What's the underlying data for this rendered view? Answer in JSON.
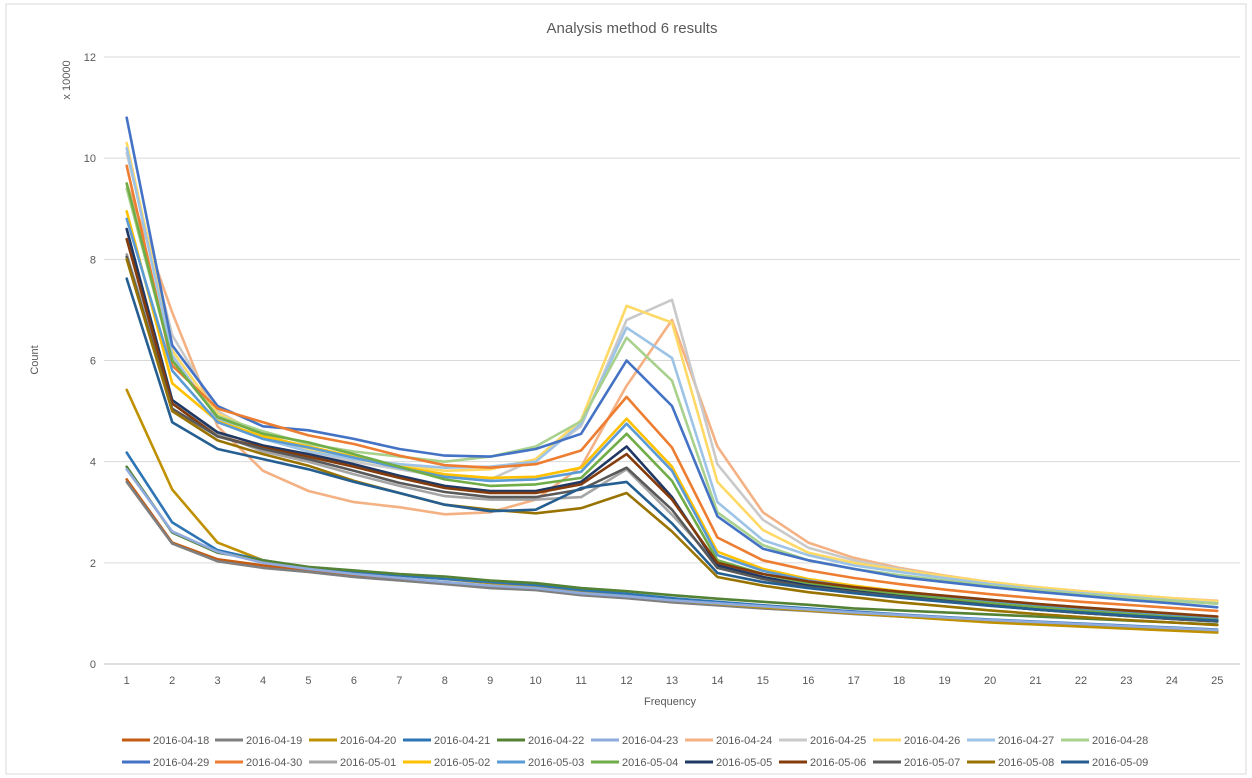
{
  "chart_data": {
    "type": "line",
    "title": "Analysis method 6 results",
    "xlabel": "Frequency",
    "ylabel": "Count",
    "y_unit_label": "x 10000",
    "y_scale": 10000,
    "ylim": [
      0,
      12
    ],
    "y_ticks": [
      0,
      2,
      4,
      6,
      8,
      10,
      12
    ],
    "x": [
      1,
      2,
      3,
      4,
      5,
      6,
      7,
      8,
      9,
      10,
      11,
      12,
      13,
      14,
      15,
      16,
      17,
      18,
      19,
      20,
      21,
      22,
      23,
      24,
      25
    ],
    "grid": "horizontal",
    "legend_position": "bottom",
    "series": [
      {
        "name": "2016-04-18",
        "color": "#c55a11",
        "values": [
          3.65,
          2.4,
          2.07,
          1.95,
          1.85,
          1.75,
          1.68,
          1.6,
          1.52,
          1.48,
          1.38,
          1.32,
          1.24,
          1.18,
          1.12,
          1.06,
          1.0,
          0.95,
          0.9,
          0.84,
          0.8,
          0.76,
          0.72,
          0.68,
          0.64
        ]
      },
      {
        "name": "2016-04-19",
        "color": "#7f7f7f",
        "values": [
          3.6,
          2.38,
          2.03,
          1.9,
          1.82,
          1.72,
          1.65,
          1.58,
          1.5,
          1.46,
          1.36,
          1.3,
          1.22,
          1.16,
          1.1,
          1.05,
          0.99,
          0.94,
          0.89,
          0.83,
          0.79,
          0.75,
          0.71,
          0.67,
          0.63
        ]
      },
      {
        "name": "2016-04-20",
        "color": "#bf9000",
        "values": [
          5.42,
          3.45,
          2.4,
          2.05,
          1.9,
          1.82,
          1.75,
          1.68,
          1.6,
          1.52,
          1.42,
          1.35,
          1.26,
          1.19,
          1.12,
          1.06,
          1.0,
          0.94,
          0.88,
          0.82,
          0.78,
          0.74,
          0.7,
          0.66,
          0.62
        ]
      },
      {
        "name": "2016-04-21",
        "color": "#2e75b6",
        "values": [
          4.18,
          2.8,
          2.25,
          2.05,
          1.9,
          1.82,
          1.75,
          1.68,
          1.62,
          1.56,
          1.46,
          1.39,
          1.3,
          1.23,
          1.16,
          1.1,
          1.04,
          0.98,
          0.93,
          0.88,
          0.84,
          0.8,
          0.76,
          0.72,
          0.68
        ]
      },
      {
        "name": "2016-04-22",
        "color": "#548235",
        "values": [
          3.9,
          2.6,
          2.2,
          2.05,
          1.92,
          1.85,
          1.78,
          1.73,
          1.65,
          1.6,
          1.5,
          1.44,
          1.36,
          1.29,
          1.23,
          1.17,
          1.1,
          1.06,
          1.02,
          0.98,
          0.94,
          0.9,
          0.86,
          0.82,
          0.78
        ]
      },
      {
        "name": "2016-04-23",
        "color": "#8faadc",
        "values": [
          3.85,
          2.62,
          2.22,
          2.0,
          1.88,
          1.78,
          1.7,
          1.62,
          1.55,
          1.5,
          1.4,
          1.34,
          1.26,
          1.2,
          1.14,
          1.08,
          1.02,
          0.97,
          0.92,
          0.87,
          0.83,
          0.79,
          0.75,
          0.71,
          0.67
        ]
      },
      {
        "name": "2016-04-24",
        "color": "#f4b183",
        "values": [
          9.5,
          6.95,
          4.7,
          3.82,
          3.42,
          3.2,
          3.1,
          2.96,
          3.0,
          3.25,
          3.9,
          5.5,
          6.8,
          4.3,
          3.0,
          2.4,
          2.1,
          1.9,
          1.75,
          1.62,
          1.52,
          1.44,
          1.37,
          1.3,
          1.25
        ]
      },
      {
        "name": "2016-04-25",
        "color": "#c9c9c9",
        "values": [
          10.1,
          6.5,
          5.0,
          4.5,
          4.2,
          4.0,
          3.85,
          3.7,
          3.65,
          4.05,
          4.7,
          6.8,
          7.2,
          3.95,
          2.85,
          2.3,
          2.05,
          1.88,
          1.73,
          1.6,
          1.5,
          1.42,
          1.35,
          1.28,
          1.22
        ]
      },
      {
        "name": "2016-04-26",
        "color": "#ffd966",
        "values": [
          10.3,
          6.2,
          4.95,
          4.55,
          4.25,
          4.05,
          3.92,
          3.82,
          3.85,
          4.05,
          4.82,
          7.08,
          6.75,
          3.6,
          2.65,
          2.2,
          2.0,
          1.86,
          1.74,
          1.62,
          1.52,
          1.44,
          1.37,
          1.3,
          1.24
        ]
      },
      {
        "name": "2016-04-27",
        "color": "#9dc3e6",
        "values": [
          10.2,
          6.1,
          4.85,
          4.45,
          4.2,
          4.05,
          3.95,
          3.88,
          3.9,
          4.0,
          4.75,
          6.65,
          6.05,
          3.2,
          2.45,
          2.15,
          1.95,
          1.82,
          1.7,
          1.58,
          1.48,
          1.4,
          1.33,
          1.26,
          1.2
        ]
      },
      {
        "name": "2016-04-28",
        "color": "#a9d18e",
        "values": [
          9.4,
          6.0,
          4.9,
          4.6,
          4.35,
          4.2,
          4.1,
          4.0,
          4.1,
          4.3,
          4.8,
          6.45,
          5.6,
          3.0,
          2.35,
          2.05,
          1.88,
          1.76,
          1.65,
          1.55,
          1.46,
          1.38,
          1.31,
          1.25,
          1.19
        ]
      },
      {
        "name": "2016-04-29",
        "color": "#4472c4",
        "values": [
          10.8,
          6.3,
          5.1,
          4.7,
          4.62,
          4.45,
          4.25,
          4.12,
          4.1,
          4.25,
          4.55,
          6.0,
          5.1,
          2.92,
          2.28,
          2.05,
          1.88,
          1.72,
          1.62,
          1.52,
          1.43,
          1.35,
          1.27,
          1.2,
          1.12
        ]
      },
      {
        "name": "2016-04-30",
        "color": "#ed7d31",
        "values": [
          9.85,
          5.9,
          5.05,
          4.78,
          4.52,
          4.35,
          4.12,
          3.93,
          3.88,
          3.95,
          4.22,
          5.28,
          4.28,
          2.5,
          2.05,
          1.85,
          1.7,
          1.58,
          1.47,
          1.38,
          1.3,
          1.23,
          1.17,
          1.11,
          1.05
        ]
      },
      {
        "name": "2016-05-01",
        "color": "#a5a5a5",
        "values": [
          8.1,
          5.2,
          4.55,
          4.2,
          4.0,
          3.75,
          3.52,
          3.32,
          3.25,
          3.25,
          3.3,
          3.85,
          2.95,
          1.98,
          1.72,
          1.55,
          1.44,
          1.34,
          1.25,
          1.16,
          1.08,
          1.02,
          0.96,
          0.9,
          0.85
        ]
      },
      {
        "name": "2016-05-02",
        "color": "#ffc000",
        "values": [
          8.95,
          5.55,
          4.8,
          4.5,
          4.3,
          4.1,
          3.9,
          3.75,
          3.68,
          3.7,
          3.88,
          4.85,
          3.9,
          2.22,
          1.88,
          1.68,
          1.55,
          1.44,
          1.34,
          1.25,
          1.17,
          1.1,
          1.03,
          0.97,
          0.91
        ]
      },
      {
        "name": "2016-05-03",
        "color": "#5b9bd5",
        "values": [
          8.8,
          5.8,
          4.78,
          4.45,
          4.28,
          4.08,
          3.88,
          3.7,
          3.62,
          3.65,
          3.8,
          4.75,
          3.82,
          2.15,
          1.84,
          1.65,
          1.52,
          1.41,
          1.31,
          1.22,
          1.14,
          1.07,
          1.01,
          0.95,
          0.89
        ]
      },
      {
        "name": "2016-05-04",
        "color": "#70ad47",
        "values": [
          9.5,
          6.0,
          4.88,
          4.55,
          4.38,
          4.15,
          3.9,
          3.65,
          3.52,
          3.55,
          3.68,
          4.55,
          3.62,
          2.05,
          1.78,
          1.6,
          1.48,
          1.38,
          1.29,
          1.2,
          1.12,
          1.05,
          0.99,
          0.93,
          0.87
        ]
      },
      {
        "name": "2016-05-05",
        "color": "#203864",
        "values": [
          8.6,
          5.22,
          4.58,
          4.32,
          4.15,
          3.95,
          3.72,
          3.52,
          3.42,
          3.42,
          3.6,
          4.3,
          3.3,
          1.95,
          1.72,
          1.55,
          1.44,
          1.34,
          1.25,
          1.16,
          1.08,
          1.01,
          0.95,
          0.89,
          0.84
        ]
      },
      {
        "name": "2016-05-06",
        "color": "#843c0c",
        "values": [
          8.4,
          5.15,
          4.5,
          4.28,
          4.1,
          3.9,
          3.68,
          3.48,
          3.38,
          3.38,
          3.55,
          4.15,
          3.25,
          2.0,
          1.78,
          1.63,
          1.52,
          1.43,
          1.35,
          1.27,
          1.19,
          1.12,
          1.06,
          1.0,
          0.94
        ]
      },
      {
        "name": "2016-05-07",
        "color": "#595959",
        "values": [
          8.05,
          5.05,
          4.5,
          4.25,
          4.05,
          3.82,
          3.58,
          3.4,
          3.3,
          3.3,
          3.45,
          3.88,
          3.05,
          1.9,
          1.68,
          1.52,
          1.42,
          1.33,
          1.24,
          1.16,
          1.08,
          1.01,
          0.95,
          0.89,
          0.84
        ]
      },
      {
        "name": "2016-05-08",
        "color": "#997300",
        "values": [
          8.0,
          5.0,
          4.42,
          4.15,
          3.92,
          3.62,
          3.38,
          3.15,
          3.05,
          2.98,
          3.08,
          3.38,
          2.62,
          1.72,
          1.55,
          1.42,
          1.32,
          1.22,
          1.14,
          1.06,
          0.99,
          0.93,
          0.87,
          0.82,
          0.77
        ]
      },
      {
        "name": "2016-05-09",
        "color": "#255e91",
        "values": [
          7.62,
          4.78,
          4.25,
          4.05,
          3.85,
          3.6,
          3.38,
          3.15,
          3.02,
          3.05,
          3.48,
          3.6,
          2.78,
          1.8,
          1.62,
          1.5,
          1.4,
          1.31,
          1.23,
          1.15,
          1.08,
          1.02,
          0.96,
          0.91,
          0.86
        ]
      }
    ]
  }
}
